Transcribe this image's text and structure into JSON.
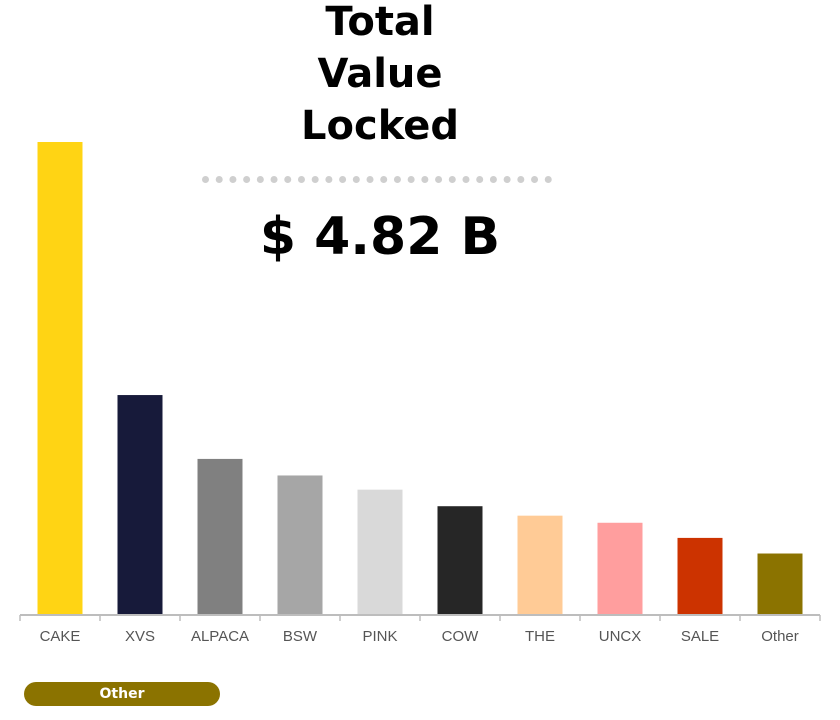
{
  "header": {
    "title_lines": [
      "Total",
      "Value",
      "Locked"
    ],
    "total_value": "$ 4.82 B"
  },
  "chart_data": {
    "type": "bar",
    "categories": [
      "CAKE",
      "XVS",
      "ALPACA",
      "BSW",
      "PINK",
      "COW",
      "THE",
      "UNCX",
      "SALE",
      "Other"
    ],
    "values": [
      100,
      46.5,
      33,
      29.5,
      26.5,
      23,
      21,
      19.5,
      16.3,
      13
    ],
    "colors": [
      "#FFD414",
      "#171A3A",
      "#808080",
      "#A6A6A6",
      "#D9D9D9",
      "#262626",
      "#FFCB96",
      "#FF9E9E",
      "#CC3300",
      "#8B7300"
    ],
    "ylim": [
      0,
      100
    ],
    "legend": {
      "position": "bottom-left",
      "entries": [
        {
          "name": "Other",
          "color": "#8B7300"
        }
      ]
    }
  }
}
